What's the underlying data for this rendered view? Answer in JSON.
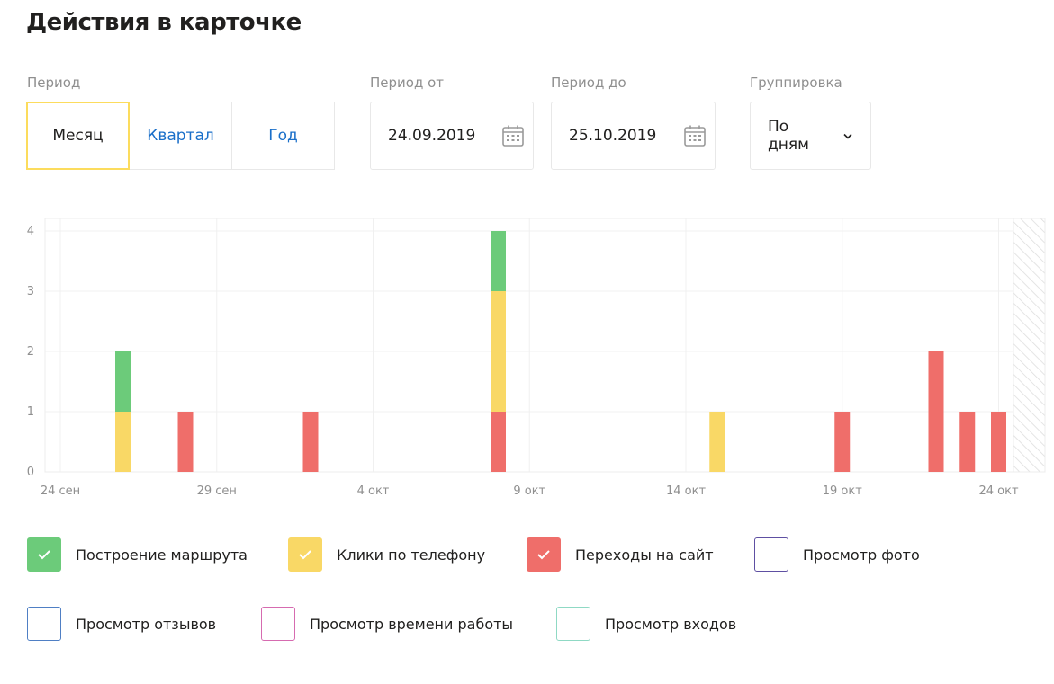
{
  "title": "Действия в карточке",
  "filters": {
    "period_label": "Период",
    "period_options": [
      "Месяц",
      "Квартал",
      "Год"
    ],
    "period_selected": "Месяц",
    "from_label": "Период от",
    "from_value": "24.09.2019",
    "to_label": "Период до",
    "to_value": "25.10.2019",
    "grouping_label": "Группировка",
    "grouping_value": "По дням"
  },
  "colors": {
    "route": "#6ccb7a",
    "phone": "#f9d866",
    "site": "#ef6e6a",
    "accent": "#fcdc5d",
    "link": "#1a6fc9"
  },
  "legend": [
    {
      "label": "Построение маршрута",
      "color": "#6ccb7a",
      "checked": true
    },
    {
      "label": "Клики по телефону",
      "color": "#f9d866",
      "checked": true
    },
    {
      "label": "Переходы на сайт",
      "color": "#ef6e6a",
      "checked": true
    },
    {
      "label": "Просмотр фото",
      "color": "#5e4fa2",
      "checked": false
    },
    {
      "label": "Просмотр отзывов",
      "color": "#4f7fc4",
      "checked": false
    },
    {
      "label": "Просмотр времени работы",
      "color": "#d66bb0",
      "checked": false
    },
    {
      "label": "Просмотр входов",
      "color": "#8fd9c4",
      "checked": false
    }
  ],
  "chart_data": {
    "type": "bar",
    "stacked": true,
    "x_start": "24.09.2019",
    "x_end": "25.10.2019",
    "xticks": [
      "24 сен",
      "29 сен",
      "4 окт",
      "9 окт",
      "14 окт",
      "19 окт",
      "24 окт"
    ],
    "yticks": [
      0,
      1,
      2,
      3,
      4
    ],
    "ylim": [
      0,
      4
    ],
    "categories": [
      "26 сен",
      "28 сен",
      "2 окт",
      "8 окт",
      "15 окт",
      "19 окт",
      "22 окт",
      "23 окт",
      "24 окт"
    ],
    "series": [
      {
        "name": "Переходы на сайт",
        "color": "#ef6e6a",
        "values": [
          0,
          1,
          1,
          1,
          0,
          1,
          2,
          1,
          1
        ]
      },
      {
        "name": "Клики по телефону",
        "color": "#f9d866",
        "values": [
          1,
          0,
          0,
          2,
          1,
          0,
          0,
          0,
          0
        ]
      },
      {
        "name": "Построение маршрута",
        "color": "#6ccb7a",
        "values": [
          1,
          0,
          0,
          1,
          0,
          0,
          0,
          0,
          0
        ]
      }
    ],
    "grid": true,
    "legend_position": "bottom"
  }
}
